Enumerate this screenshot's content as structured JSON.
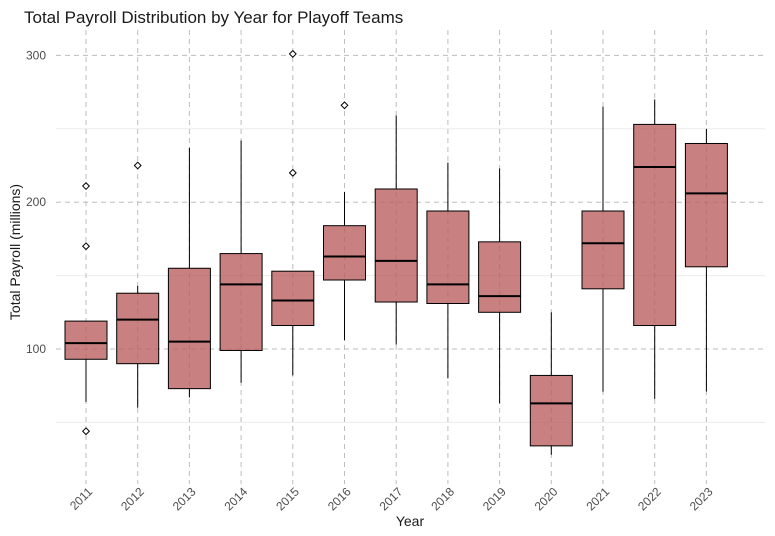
{
  "chart_data": {
    "type": "box",
    "title": "Total Payroll Distribution by Year for Playoff Teams",
    "xlabel": "Year",
    "ylabel": "Total Payroll (millions)",
    "ylim": [
      25,
      315
    ],
    "yticks": [
      100,
      200,
      300
    ],
    "grid": true,
    "categories": [
      "2011",
      "2012",
      "2013",
      "2014",
      "2015",
      "2016",
      "2017",
      "2018",
      "2019",
      "2020",
      "2021",
      "2022",
      "2023"
    ],
    "boxes": [
      {
        "year": "2011",
        "min": 64,
        "q1": 93,
        "median": 104,
        "q3": 119,
        "max": 119,
        "outliers": [
          44,
          170,
          211
        ]
      },
      {
        "year": "2012",
        "min": 60,
        "q1": 90,
        "median": 120,
        "q3": 138,
        "max": 143,
        "outliers": [
          225
        ]
      },
      {
        "year": "2013",
        "min": 67,
        "q1": 73,
        "median": 105,
        "q3": 155,
        "max": 237,
        "outliers": []
      },
      {
        "year": "2014",
        "min": 77,
        "q1": 99,
        "median": 144,
        "q3": 165,
        "max": 242,
        "outliers": []
      },
      {
        "year": "2015",
        "min": 82,
        "q1": 116,
        "median": 133,
        "q3": 153,
        "max": 153,
        "outliers": [
          220,
          301
        ]
      },
      {
        "year": "2016",
        "min": 106,
        "q1": 147,
        "median": 163,
        "q3": 184,
        "max": 207,
        "outliers": [
          266
        ]
      },
      {
        "year": "2017",
        "min": 103,
        "q1": 132,
        "median": 160,
        "q3": 209,
        "max": 259,
        "outliers": []
      },
      {
        "year": "2018",
        "min": 80,
        "q1": 131,
        "median": 144,
        "q3": 194,
        "max": 227,
        "outliers": []
      },
      {
        "year": "2019",
        "min": 63,
        "q1": 125,
        "median": 136,
        "q3": 173,
        "max": 223,
        "outliers": []
      },
      {
        "year": "2020",
        "min": 28,
        "q1": 34,
        "median": 63,
        "q3": 82,
        "max": 125,
        "outliers": []
      },
      {
        "year": "2021",
        "min": 71,
        "q1": 141,
        "median": 172,
        "q3": 194,
        "max": 265,
        "outliers": []
      },
      {
        "year": "2022",
        "min": 66,
        "q1": 116,
        "median": 224,
        "q3": 253,
        "max": 270,
        "outliers": []
      },
      {
        "year": "2023",
        "min": 71,
        "q1": 156,
        "median": 206,
        "q3": 240,
        "max": 250,
        "outliers": []
      }
    ],
    "colors": {
      "box_fill": "#b85c5c",
      "box_stroke": "#000000",
      "grid": "#bdbdbd",
      "minor_grid": "#ebebeb"
    }
  }
}
